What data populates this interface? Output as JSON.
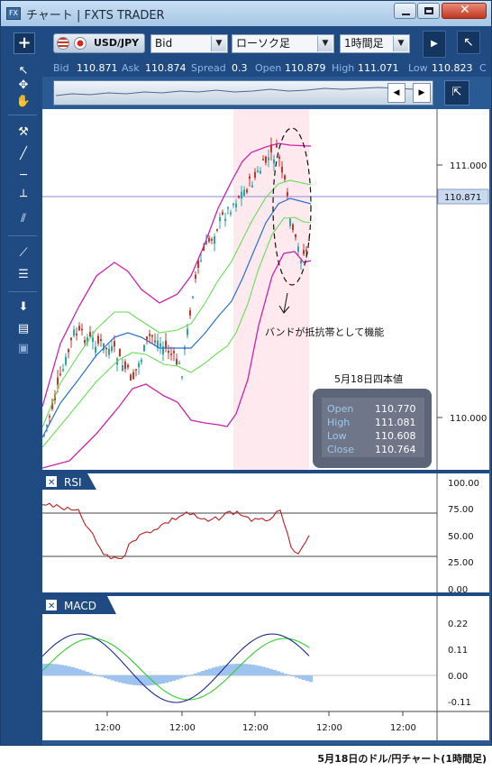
{
  "window": {
    "title": "チャート | FXTS TRADER",
    "app_icon": "FX"
  },
  "toolbar": {
    "pair": "USD/JPY",
    "price_type": "Bid",
    "chart_type": "ローソク足",
    "timeframe": "1時間足"
  },
  "pricebar": [
    {
      "key": "Bid",
      "value": "110.871"
    },
    {
      "key": "Ask",
      "value": "110.874"
    },
    {
      "key": "Spread",
      "value": "0.3"
    },
    {
      "key": "Open",
      "value": "110.879"
    },
    {
      "key": "High",
      "value": "111.071"
    },
    {
      "key": "Low",
      "value": "110.823"
    },
    {
      "key": "C",
      "value": ""
    }
  ],
  "chart": {
    "price_labels": [
      "111.000",
      "110.000"
    ],
    "current_price": "110.871",
    "annotation": "バンドが抵抗帯として機能",
    "ohlc_box": {
      "title": "5月18日四本値",
      "rows": [
        {
          "label": "Open",
          "value": "110.770"
        },
        {
          "label": "High",
          "value": "111.081"
        },
        {
          "label": "Low",
          "value": "110.608"
        },
        {
          "label": "Close",
          "value": "110.764"
        }
      ]
    },
    "time_labels": [
      "12:00",
      "12:00",
      "12:00",
      "12:00",
      "12:00"
    ]
  },
  "rsi": {
    "title": "RSI",
    "ticks": [
      "100.00",
      "75.00",
      "50.00",
      "25.00",
      "0.00"
    ]
  },
  "macd": {
    "title": "MACD",
    "ticks": [
      "0.22",
      "0.11",
      "0.00",
      "-0.11"
    ]
  },
  "caption": "5月18日のドル/円チャート(1時間足)",
  "colors": {
    "frame": "#2a5a93",
    "upper_band": "#cc22aa",
    "sigma1": "#66dd55",
    "middle": "#2a70c8",
    "rsi_line": "#b81f1f",
    "macd_line": "#1b2a8c",
    "signal_line": "#33cc33",
    "histogram": "#9ec3ef",
    "bull": "#2aa6a6",
    "bear": "#c0392b"
  }
}
